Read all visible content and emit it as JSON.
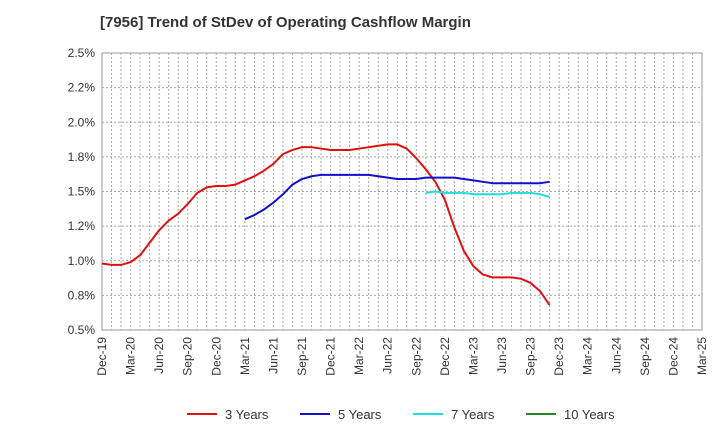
{
  "chart_data": {
    "type": "line",
    "title": "[7956]  Trend of StDev of Operating Cashflow Margin",
    "xlabel": "",
    "ylabel": "",
    "x_tick_labels": [
      "Dec-19",
      "Mar-20",
      "Jun-20",
      "Sep-20",
      "Dec-20",
      "Mar-21",
      "Jun-21",
      "Sep-21",
      "Dec-21",
      "Mar-22",
      "Jun-22",
      "Sep-22",
      "Dec-22",
      "Mar-23",
      "Jun-23",
      "Sep-23",
      "Dec-23",
      "Mar-24",
      "Jun-24",
      "Sep-24",
      "Dec-24",
      "Mar-25"
    ],
    "y_tick_labels": [
      "0.5%",
      "0.8%",
      "1.0%",
      "1.2%",
      "1.5%",
      "1.8%",
      "2.0%",
      "2.2%",
      "2.5%"
    ],
    "ylim": [
      0.5,
      2.5
    ],
    "y_unit": "%",
    "grid": true,
    "legend_position": "bottom",
    "series": [
      {
        "name": "3 Years",
        "color": "#dd1111",
        "values": [
          0.98,
          0.97,
          0.97,
          0.99,
          1.04,
          1.13,
          1.22,
          1.29,
          1.34,
          1.41,
          1.49,
          1.53,
          1.54,
          1.54,
          1.55,
          1.58,
          1.61,
          1.65,
          1.7,
          1.77,
          1.8,
          1.82,
          1.82,
          1.81,
          1.8,
          1.8,
          1.8,
          1.81,
          1.82,
          1.83,
          1.84,
          1.84,
          1.81,
          1.74,
          1.66,
          1.57,
          1.44,
          1.24,
          1.07,
          0.96,
          0.9,
          0.88,
          0.88,
          0.88,
          0.87,
          0.84,
          0.78,
          0.68
        ]
      },
      {
        "name": "5 Years",
        "color": "#1111cc",
        "values": [
          null,
          null,
          null,
          null,
          null,
          null,
          null,
          null,
          null,
          null,
          null,
          null,
          null,
          null,
          null,
          1.3,
          1.33,
          1.37,
          1.42,
          1.48,
          1.55,
          1.59,
          1.61,
          1.62,
          1.62,
          1.62,
          1.62,
          1.62,
          1.62,
          1.61,
          1.6,
          1.59,
          1.59,
          1.59,
          1.6,
          1.6,
          1.6,
          1.6,
          1.59,
          1.58,
          1.57,
          1.56,
          1.56,
          1.56,
          1.56,
          1.56,
          1.56,
          1.57
        ]
      },
      {
        "name": "7 Years",
        "color": "#22dddd",
        "values": [
          null,
          null,
          null,
          null,
          null,
          null,
          null,
          null,
          null,
          null,
          null,
          null,
          null,
          null,
          null,
          null,
          null,
          null,
          null,
          null,
          null,
          null,
          null,
          null,
          null,
          null,
          null,
          null,
          null,
          null,
          null,
          null,
          null,
          null,
          1.49,
          1.5,
          1.49,
          1.49,
          1.49,
          1.48,
          1.48,
          1.48,
          1.48,
          1.49,
          1.49,
          1.49,
          1.48,
          1.46
        ]
      },
      {
        "name": "10 Years",
        "color": "#228822",
        "values": []
      }
    ]
  }
}
